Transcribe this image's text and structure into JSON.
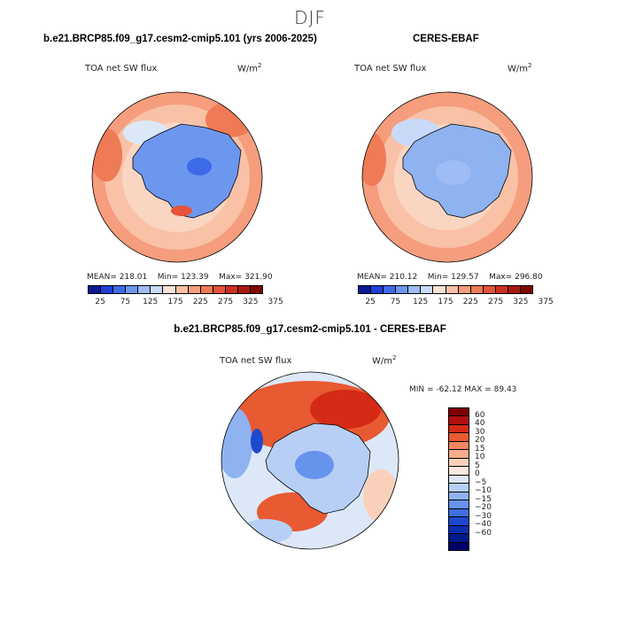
{
  "season": "DJF",
  "colors": {
    "abs_scale": [
      "#0a1a96",
      "#1f3fd6",
      "#3d6be8",
      "#6d97ef",
      "#9ebcf5",
      "#c8daf8",
      "#f6e2d6",
      "#f9c1a6",
      "#f59d7c",
      "#ef7a56",
      "#e4533a",
      "#cc3020",
      "#a81a10",
      "#800800"
    ],
    "diff_scale": [
      "#800000",
      "#b21010",
      "#d52a16",
      "#e85a32",
      "#f2865e",
      "#f7ac8a",
      "#fad0bb",
      "#fbe8dd",
      "#dce8f8",
      "#b7cff5",
      "#8fb3f1",
      "#6693ec",
      "#3e6ee3",
      "#1e49cf",
      "#0d2db0",
      "#001a88",
      "#000066"
    ]
  },
  "panels": {
    "model": {
      "title": "b.e21.BRCP85.f09_g17.cesm2-cmip5.101 (yrs 2006-2025)",
      "field": "TOA net SW flux",
      "units_base": "W/m",
      "units_exp": "2",
      "mean_label": "MEAN=",
      "mean": "218.01",
      "min_label": "Min=",
      "min": "123.39",
      "max_label": "Max=",
      "max": "321.90"
    },
    "obs": {
      "title": "CERES-EBAF",
      "field": "TOA net SW flux",
      "units_base": "W/m",
      "units_exp": "2",
      "mean_label": "MEAN=",
      "mean": "210.12",
      "min_label": "Min=",
      "min": "129.57",
      "max_label": "Max=",
      "max": "296.80"
    },
    "diff": {
      "title": "b.e21.BRCP85.f09_g17.cesm2-cmip5.101 - CERES-EBAF",
      "field": "TOA net SW flux",
      "units_base": "W/m",
      "units_exp": "2",
      "minmax": "MIN = -62.12 MAX =  89.43"
    }
  },
  "colorbar_abs_ticks": [
    "25",
    "75",
    "125",
    "175",
    "225",
    "275",
    "325",
    "375"
  ],
  "colorbar_diff_labels": [
    "60",
    "40",
    "30",
    "20",
    "15",
    "10",
    "5",
    "0",
    "−5",
    "−10",
    "−15",
    "−20",
    "−30",
    "−40",
    "−60"
  ],
  "chart_data": [
    {
      "type": "heatmap",
      "projection": "south polar stereographic",
      "title": "b.e21.BRCP85.f09_g17.cesm2-cmip5.101 (yrs 2006-2025)",
      "variable": "TOA net SW flux",
      "units": "W/m^2",
      "mean": 218.01,
      "min": 123.39,
      "max": 321.9,
      "colorbar_levels": [
        25,
        50,
        75,
        100,
        125,
        150,
        175,
        200,
        225,
        250,
        275,
        300,
        325,
        350,
        375
      ]
    },
    {
      "type": "heatmap",
      "projection": "south polar stereographic",
      "title": "CERES-EBAF",
      "variable": "TOA net SW flux",
      "units": "W/m^2",
      "mean": 210.12,
      "min": 129.57,
      "max": 296.8,
      "colorbar_levels": [
        25,
        50,
        75,
        100,
        125,
        150,
        175,
        200,
        225,
        250,
        275,
        300,
        325,
        350,
        375
      ]
    },
    {
      "type": "heatmap",
      "projection": "south polar stereographic",
      "title": "b.e21.BRCP85.f09_g17.cesm2-cmip5.101 - CERES-EBAF",
      "variable": "TOA net SW flux",
      "units": "W/m^2",
      "min": -62.12,
      "max": 89.43,
      "colorbar_levels": [
        60,
        40,
        30,
        20,
        15,
        10,
        5,
        0,
        -5,
        -10,
        -15,
        -20,
        -30,
        -40,
        -60
      ]
    }
  ]
}
